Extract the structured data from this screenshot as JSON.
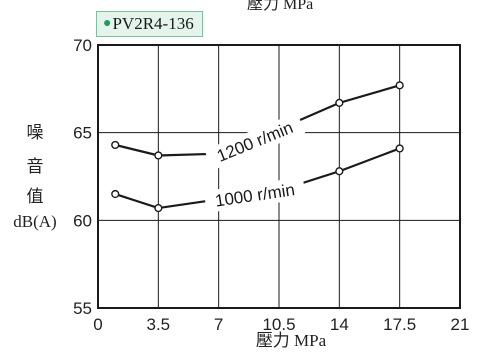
{
  "tag": {
    "marker": "●",
    "text": "PV2R4-136"
  },
  "top_label": "壓力 MPa",
  "ylabel_lines": [
    "噪",
    "音",
    "值",
    "dB(A)"
  ],
  "chart_data": {
    "type": "line",
    "xlabel": "壓力 MPa",
    "ylabel": "噪音值 dB(A)",
    "xlim": [
      0,
      21
    ],
    "ylim": [
      55,
      70
    ],
    "xticks": [
      0,
      3.5,
      7,
      10.5,
      14,
      17.5,
      21
    ],
    "xtick_labels": [
      "0",
      "3.5",
      "7",
      "10.5",
      "14",
      "17.5",
      "21"
    ],
    "yticks": [
      55,
      60,
      65,
      70
    ],
    "ytick_labels": [
      "55",
      "60",
      "65",
      "70"
    ],
    "grid": true,
    "series": [
      {
        "name": "1200 r/min",
        "x": [
          1,
          3.5,
          7,
          10.5,
          14,
          17.5
        ],
        "y": [
          64.3,
          63.7,
          63.8,
          65.2,
          66.7,
          67.7
        ]
      },
      {
        "name": "1000 r/min",
        "x": [
          1,
          3.5,
          7,
          10.5,
          14,
          17.5
        ],
        "y": [
          61.5,
          60.7,
          61.2,
          61.7,
          62.8,
          64.1
        ]
      }
    ]
  }
}
